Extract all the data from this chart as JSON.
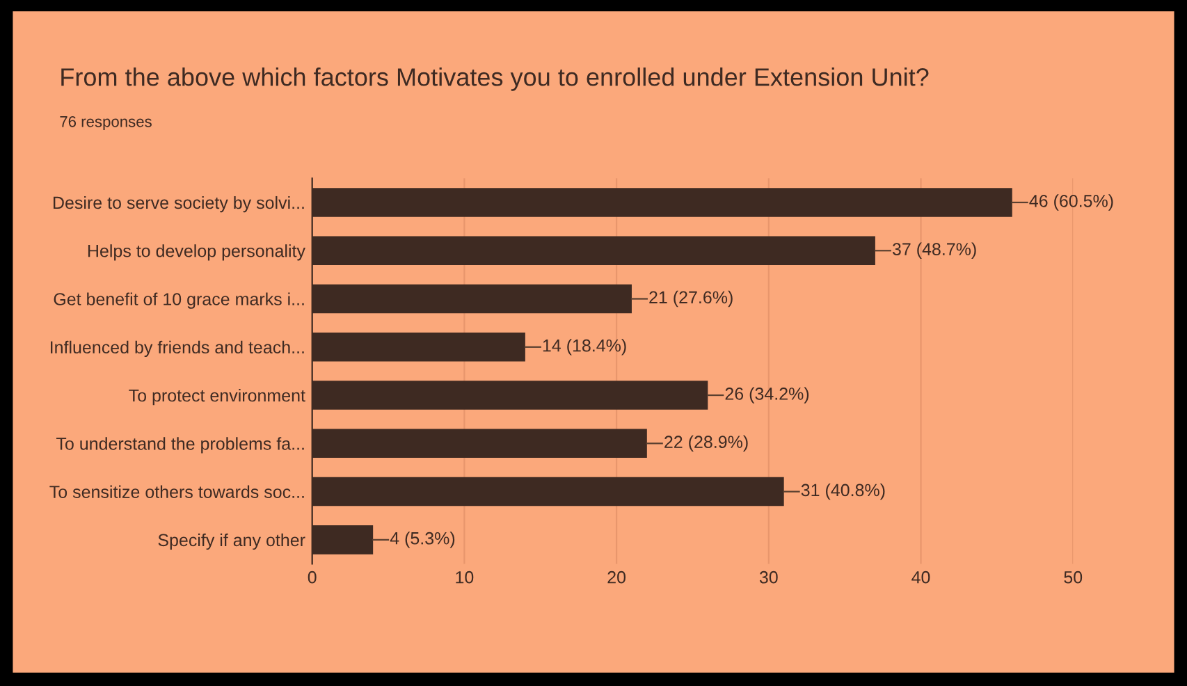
{
  "chart_data": {
    "type": "bar",
    "orientation": "horizontal",
    "title": "From the above which factors Motivates you to enrolled under Extension Unit?",
    "subtitle": "76 responses",
    "categories": [
      "Desire to serve society by solvi...",
      "Helps to develop personality",
      "Get benefit of 10 grace marks i...",
      "Influenced by friends and teach...",
      "To protect environment",
      "To understand the problems fa...",
      "To sensitize others towards soc...",
      "Specify if any other"
    ],
    "values": [
      46,
      37,
      21,
      14,
      26,
      22,
      31,
      4
    ],
    "value_labels": [
      "46 (60.5%)",
      "37 (48.7%)",
      "21 (27.6%)",
      "14 (18.4%)",
      "26 (34.2%)",
      "22 (28.9%)",
      "31 (40.8%)",
      "4 (5.3%)"
    ],
    "color": "#3e2a22",
    "xlim": [
      0,
      50
    ],
    "xticks": [
      0,
      10,
      20,
      30,
      40,
      50
    ],
    "grid": "x",
    "legend": false
  }
}
